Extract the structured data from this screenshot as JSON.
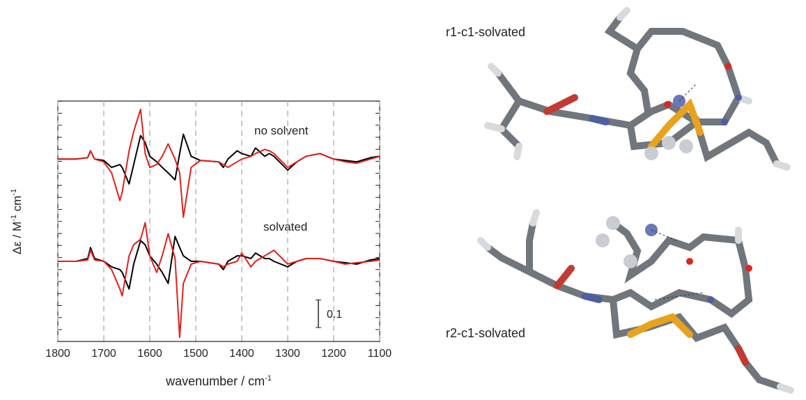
{
  "chart_data": {
    "type": "line",
    "x": [
      1800,
      1760,
      1735,
      1729,
      1720,
      1700,
      1683,
      1665,
      1660,
      1645,
      1635,
      1620,
      1610,
      1600,
      1585,
      1573,
      1560,
      1545,
      1535,
      1527,
      1510,
      1490,
      1450,
      1440,
      1430,
      1410,
      1400,
      1380,
      1370,
      1350,
      1340,
      1330,
      1300,
      1280,
      1260,
      1230,
      1200,
      1175,
      1150,
      1120,
      1100
    ],
    "series": [
      {
        "color": "#000000",
        "values": [
          0.37,
          0.37,
          0.375,
          0.4,
          0.37,
          0.365,
          0.34,
          0.35,
          0.34,
          0.28,
          0.35,
          0.455,
          0.43,
          0.38,
          0.36,
          0.34,
          0.32,
          0.295,
          0.39,
          0.46,
          0.38,
          0.365,
          0.36,
          0.34,
          0.37,
          0.4,
          0.39,
          0.38,
          0.41,
          0.38,
          0.39,
          0.38,
          0.33,
          0.36,
          0.38,
          0.39,
          0.37,
          0.365,
          0.36,
          0.375,
          0.38
        ]
      },
      {
        "color": "#e0201b",
        "values": [
          0.37,
          0.37,
          0.375,
          0.4,
          0.37,
          0.36,
          0.32,
          0.22,
          0.25,
          0.4,
          0.47,
          0.55,
          0.39,
          0.34,
          0.35,
          0.38,
          0.425,
          0.37,
          0.32,
          0.16,
          0.34,
          0.365,
          0.36,
          0.35,
          0.34,
          0.36,
          0.37,
          0.38,
          0.39,
          0.405,
          0.4,
          0.39,
          0.34,
          0.36,
          0.38,
          0.39,
          0.37,
          0.36,
          0.355,
          0.37,
          0.38
        ]
      },
      {
        "color": "#000000",
        "values": [
          0,
          0,
          0.01,
          0.05,
          0.01,
          0,
          -0.02,
          -0.03,
          -0.04,
          -0.1,
          -0.01,
          0.075,
          0.06,
          0.02,
          -0.01,
          -0.04,
          -0.08,
          0.09,
          0.05,
          0.02,
          0,
          0,
          -0.01,
          -0.03,
          0,
          0.02,
          0.02,
          0.01,
          0.03,
          0.01,
          0.01,
          0,
          -0.02,
          0,
          0.01,
          0.01,
          0,
          -0.005,
          -0.01,
          0.005,
          0.01
        ]
      },
      {
        "color": "#e0201b",
        "values": [
          0,
          0,
          0.005,
          0.04,
          0.005,
          0,
          -0.03,
          -0.1,
          -0.125,
          0.02,
          0.06,
          0.08,
          0.14,
          0.02,
          -0.04,
          0.02,
          0.1,
          0.01,
          -0.275,
          -0.08,
          -0.01,
          0,
          -0.01,
          -0.02,
          -0.01,
          0,
          0.03,
          -0.02,
          0,
          0.02,
          0.03,
          0.04,
          -0.01,
          0,
          0.01,
          0.01,
          0,
          -0.01,
          -0.005,
          0,
          0.005
        ]
      }
    ],
    "xlim": [
      1800,
      1100
    ],
    "xticks": [
      1800,
      1700,
      1600,
      1500,
      1400,
      1300,
      1200,
      1100
    ],
    "grid": true,
    "ylim": [
      -0.29,
      0.58
    ],
    "xlabel": {
      "text": "wavenumber / cm",
      "sup": "-1"
    },
    "ylabel": [
      "Δε / M",
      "-1",
      " cm",
      "-1"
    ],
    "annotations": [
      "no solvent",
      "solvated"
    ],
    "scale_bar": 0.1
  },
  "structures": [
    "r1-c1-solvated",
    "r2-c1-solvated"
  ]
}
